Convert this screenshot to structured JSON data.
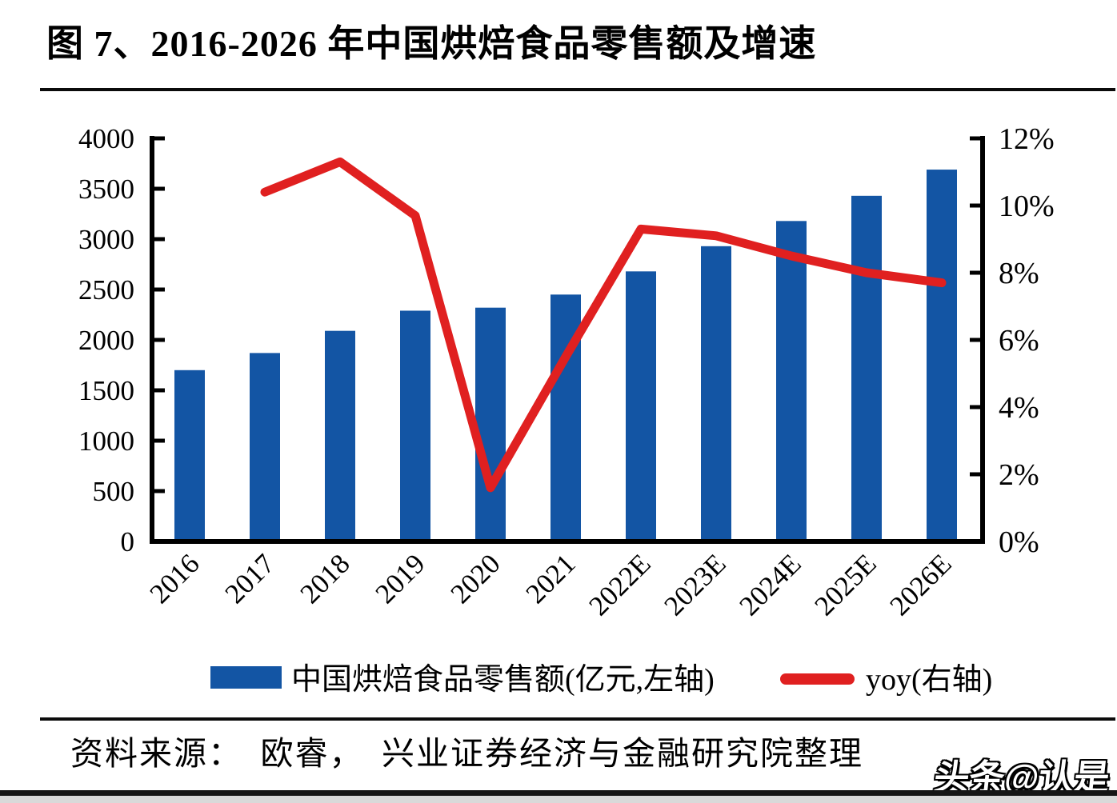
{
  "title": "图 7、2016-2026 年中国烘焙食品零售额及增速",
  "source_text": "资料来源：　欧睿，　兴业证券经济与金融研究院整理",
  "watermark": "头条@认是",
  "colors": {
    "bar": "#1355A4",
    "line": "#E02020",
    "axis": "#000000"
  },
  "legend": [
    {
      "label": "中国烘焙食品零售额(亿元,左轴)",
      "type": "bar"
    },
    {
      "label": "yoy(右轴)",
      "type": "line"
    }
  ],
  "chart_data": {
    "type": "bar+line",
    "title": "图 7、2016-2026 年中国烘焙食品零售额及增速",
    "categories": [
      "2016",
      "2017",
      "2018",
      "2019",
      "2020",
      "2021",
      "2022E",
      "2023E",
      "2024E",
      "2025E",
      "2026E"
    ],
    "series": [
      {
        "name": "中国烘焙食品零售额(亿元,左轴)",
        "type": "bar",
        "axis": "left",
        "values": [
          1700,
          1870,
          2090,
          2290,
          2320,
          2450,
          2680,
          2930,
          3180,
          3430,
          3690
        ]
      },
      {
        "name": "yoy(右轴)",
        "type": "line",
        "axis": "right",
        "values": [
          null,
          10.4,
          11.3,
          9.7,
          1.6,
          5.5,
          9.3,
          9.1,
          8.5,
          8.0,
          7.7
        ]
      }
    ],
    "left_axis": {
      "min": 0,
      "max": 4000,
      "step": 500,
      "tick_labels": [
        "0",
        "500",
        "1000",
        "1500",
        "2000",
        "2500",
        "3000",
        "3500",
        "4000"
      ]
    },
    "right_axis": {
      "min": 0,
      "max": 12,
      "step": 2,
      "tick_labels": [
        "0%",
        "2%",
        "4%",
        "6%",
        "8%",
        "10%",
        "12%"
      ]
    },
    "grid": false,
    "legend_position": "bottom"
  }
}
